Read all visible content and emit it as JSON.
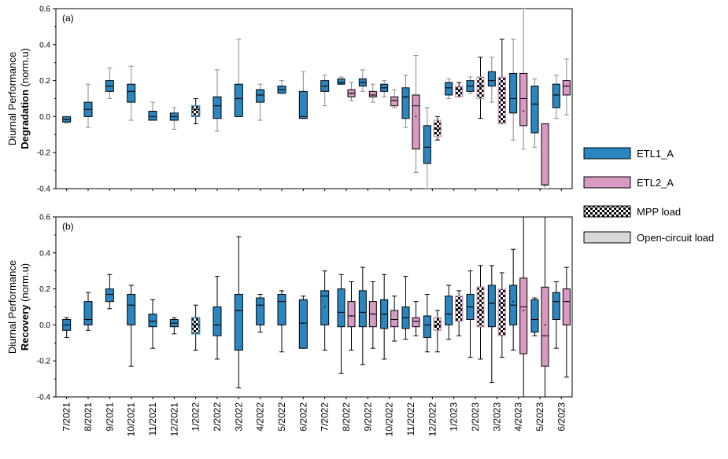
{
  "chart_data": [
    {
      "type": "box",
      "panel_label": "(a)",
      "ylabel_line1": "Diurnal Performance",
      "ylabel_line2_bold": "Degradation",
      "ylabel_line2_rest": " (norm.u)",
      "ylim": [
        -0.4,
        0.6
      ],
      "yticks": [
        "0.6",
        "0.4",
        "0.2",
        "0.0",
        "-0.2",
        "-0.4"
      ],
      "boxes": [
        {
          "cat": "7/2021",
          "series": "ETL1_A",
          "load": "open",
          "q1": -0.03,
          "median": -0.015,
          "q3": 0.0,
          "low": -0.035,
          "high": 0.0,
          "mean": -0.015
        },
        {
          "cat": "8/2021",
          "series": "ETL1_A",
          "load": "open",
          "q1": 0.0,
          "median": 0.04,
          "q3": 0.08,
          "low": -0.06,
          "high": 0.18,
          "mean": 0.04
        },
        {
          "cat": "9/2021",
          "series": "ETL1_A",
          "load": "open",
          "q1": 0.14,
          "median": 0.17,
          "q3": 0.2,
          "low": 0.1,
          "high": 0.27,
          "mean": 0.17
        },
        {
          "cat": "10/2021",
          "series": "ETL1_A",
          "load": "open",
          "q1": 0.08,
          "median": 0.14,
          "q3": 0.18,
          "low": -0.02,
          "high": 0.28,
          "mean": 0.14
        },
        {
          "cat": "11/2021",
          "series": "ETL1_A",
          "load": "open",
          "q1": -0.02,
          "median": 0.0,
          "q3": 0.03,
          "low": -0.02,
          "high": 0.08,
          "mean": 0.0
        },
        {
          "cat": "12/2021",
          "series": "ETL1_A",
          "load": "open",
          "q1": -0.02,
          "median": 0.0,
          "q3": 0.02,
          "low": -0.07,
          "high": 0.05,
          "mean": 0.0
        },
        {
          "cat": "1/2022",
          "series": "ETL1_A",
          "load": "mpp",
          "q1": 0.0,
          "median": 0.04,
          "q3": 0.06,
          "low": -0.04,
          "high": 0.1,
          "mean": 0.04
        },
        {
          "cat": "2/2022",
          "series": "ETL1_A",
          "load": "open",
          "q1": -0.01,
          "median": 0.06,
          "q3": 0.11,
          "low": -0.08,
          "high": 0.26,
          "mean": 0.06
        },
        {
          "cat": "3/2022",
          "series": "ETL1_A",
          "load": "open",
          "q1": 0.0,
          "median": 0.1,
          "q3": 0.18,
          "low": 0.0,
          "high": 0.43,
          "mean": 0.1
        },
        {
          "cat": "4/2022",
          "series": "ETL1_A",
          "load": "open",
          "q1": 0.08,
          "median": 0.12,
          "q3": 0.15,
          "low": -0.02,
          "high": 0.18,
          "mean": 0.12
        },
        {
          "cat": "5/2022",
          "series": "ETL1_A",
          "load": "open",
          "q1": 0.13,
          "median": 0.15,
          "q3": 0.17,
          "low": 0.13,
          "high": 0.2,
          "mean": 0.15
        },
        {
          "cat": "6/2022",
          "series": "ETL1_A",
          "load": "open",
          "q1": -0.01,
          "median": 0.0,
          "q3": 0.14,
          "low": -0.01,
          "high": 0.25,
          "mean": 0.0
        },
        {
          "cat": "7/2022",
          "series": "ETL1_A",
          "load": "open",
          "q1": 0.14,
          "median": 0.17,
          "q3": 0.2,
          "low": 0.06,
          "high": 0.23,
          "mean": 0.17
        },
        {
          "cat": "8/2022",
          "series": "ETL1_A",
          "load": "open",
          "q1": 0.18,
          "median": 0.19,
          "q3": 0.21,
          "low": 0.18,
          "high": 0.22,
          "mean": 0.19
        },
        {
          "cat": "8/2022",
          "series": "ETL2_A",
          "load": "open",
          "q1": 0.11,
          "median": 0.13,
          "q3": 0.15,
          "low": 0.09,
          "high": 0.19,
          "mean": 0.13
        },
        {
          "cat": "9/2022",
          "series": "ETL1_A",
          "load": "open",
          "q1": 0.17,
          "median": 0.19,
          "q3": 0.21,
          "low": 0.14,
          "high": 0.26,
          "mean": 0.19
        },
        {
          "cat": "9/2022",
          "series": "ETL2_A",
          "load": "open",
          "q1": 0.11,
          "median": 0.12,
          "q3": 0.14,
          "low": 0.08,
          "high": 0.18,
          "mean": 0.12
        },
        {
          "cat": "10/2022",
          "series": "ETL1_A",
          "load": "open",
          "q1": 0.14,
          "median": 0.16,
          "q3": 0.18,
          "low": 0.11,
          "high": 0.2,
          "mean": 0.16
        },
        {
          "cat": "10/2022",
          "series": "ETL2_A",
          "load": "open",
          "q1": 0.06,
          "median": 0.09,
          "q3": 0.11,
          "low": 0.05,
          "high": 0.15,
          "mean": 0.09
        },
        {
          "cat": "11/2022",
          "series": "ETL1_A",
          "load": "open",
          "q1": -0.01,
          "median": 0.11,
          "q3": 0.16,
          "low": -0.06,
          "high": 0.23,
          "mean": 0.11
        },
        {
          "cat": "11/2022",
          "series": "ETL2_A",
          "load": "open",
          "q1": -0.18,
          "median": 0.06,
          "q3": 0.12,
          "low": -0.31,
          "high": 0.34,
          "mean": 0.0
        },
        {
          "cat": "12/2022",
          "series": "ETL1_A",
          "load": "open",
          "q1": -0.26,
          "median": -0.17,
          "q3": -0.05,
          "low": -0.4,
          "high": 0.05,
          "mean": -0.17
        },
        {
          "cat": "12/2022",
          "series": "ETL2_A",
          "load": "mpp",
          "q1": -0.11,
          "median": -0.07,
          "q3": -0.02,
          "low": -0.13,
          "high": 0.0,
          "mean": -0.07
        },
        {
          "cat": "1/2023",
          "series": "ETL1_A",
          "load": "open",
          "q1": 0.12,
          "median": 0.16,
          "q3": 0.19,
          "low": 0.1,
          "high": 0.21,
          "mean": 0.16
        },
        {
          "cat": "1/2023",
          "series": "ETL2_A",
          "load": "mpp",
          "q1": 0.11,
          "median": 0.15,
          "q3": 0.17,
          "low": 0.11,
          "high": 0.19,
          "mean": 0.15
        },
        {
          "cat": "2/2023",
          "series": "ETL1_A",
          "load": "open",
          "q1": 0.14,
          "median": 0.17,
          "q3": 0.2,
          "low": 0.13,
          "high": 0.22,
          "mean": 0.17
        },
        {
          "cat": "2/2023",
          "series": "ETL2_A",
          "load": "mpp",
          "q1": 0.1,
          "median": 0.17,
          "q3": 0.22,
          "low": -0.01,
          "high": 0.33,
          "mean": 0.17
        },
        {
          "cat": "3/2023",
          "series": "ETL1_A",
          "load": "open",
          "q1": 0.17,
          "median": 0.2,
          "q3": 0.25,
          "low": 0.08,
          "high": 0.33,
          "mean": 0.2
        },
        {
          "cat": "3/2023",
          "series": "ETL2_A",
          "load": "mpp",
          "q1": -0.04,
          "median": 0.15,
          "q3": 0.22,
          "low": -0.04,
          "high": 0.43,
          "mean": 0.1
        },
        {
          "cat": "4/2023",
          "series": "ETL1_A",
          "load": "open",
          "q1": 0.02,
          "median": 0.1,
          "q3": 0.24,
          "low": -0.13,
          "high": 0.43,
          "mean": 0.1
        },
        {
          "cat": "4/2023",
          "series": "ETL2_A",
          "load": "open",
          "q1": -0.05,
          "median": 0.1,
          "q3": 0.24,
          "low": -0.18,
          "high": 0.6,
          "mean": 0.03
        },
        {
          "cat": "5/2023",
          "series": "ETL1_A",
          "load": "open",
          "q1": -0.09,
          "median": 0.07,
          "q3": 0.17,
          "low": -0.17,
          "high": 0.21,
          "mean": 0.07
        },
        {
          "cat": "5/2023",
          "series": "ETL2_A",
          "load": "open",
          "q1": -0.38,
          "median": -0.38,
          "q3": -0.04,
          "low": -0.4,
          "high": -0.04,
          "mean": -0.38
        },
        {
          "cat": "6/2023",
          "series": "ETL1_A",
          "load": "open",
          "q1": 0.05,
          "median": 0.12,
          "q3": 0.18,
          "low": -0.01,
          "high": 0.23,
          "mean": 0.12
        },
        {
          "cat": "6/2023",
          "series": "ETL2_A",
          "load": "open",
          "q1": 0.12,
          "median": 0.17,
          "q3": 0.2,
          "low": 0.01,
          "high": 0.32,
          "mean": 0.17
        }
      ]
    },
    {
      "type": "box",
      "panel_label": "(b)",
      "ylabel_line1": "Diurnal Performance",
      "ylabel_line2_bold": "Recovery",
      "ylabel_line2_rest": " (norm.u)",
      "ylim": [
        -0.4,
        0.6
      ],
      "yticks": [
        "0.6",
        "0.4",
        "0.2",
        "0.0",
        "-0.2",
        "-0.4"
      ],
      "boxes": [
        {
          "cat": "7/2021",
          "series": "ETL1_A",
          "load": "open",
          "q1": -0.03,
          "median": 0.0,
          "q3": 0.03,
          "low": -0.07,
          "high": 0.04,
          "mean": 0.0
        },
        {
          "cat": "8/2021",
          "series": "ETL1_A",
          "load": "open",
          "q1": 0.0,
          "median": 0.03,
          "q3": 0.13,
          "low": -0.03,
          "high": 0.18,
          "mean": 0.03
        },
        {
          "cat": "9/2021",
          "series": "ETL1_A",
          "load": "open",
          "q1": 0.13,
          "median": 0.17,
          "q3": 0.2,
          "low": 0.09,
          "high": 0.28,
          "mean": 0.17
        },
        {
          "cat": "10/2021",
          "series": "ETL1_A",
          "load": "open",
          "q1": 0.0,
          "median": 0.11,
          "q3": 0.17,
          "low": -0.23,
          "high": 0.22,
          "mean": 0.11
        },
        {
          "cat": "11/2021",
          "series": "ETL1_A",
          "load": "open",
          "q1": -0.01,
          "median": 0.02,
          "q3": 0.06,
          "low": -0.13,
          "high": 0.14,
          "mean": 0.02
        },
        {
          "cat": "12/2021",
          "series": "ETL1_A",
          "load": "open",
          "q1": -0.01,
          "median": 0.01,
          "q3": 0.03,
          "low": -0.05,
          "high": 0.04,
          "mean": 0.01
        },
        {
          "cat": "1/2022",
          "series": "ETL1_A",
          "load": "mpp",
          "q1": -0.05,
          "median": 0.0,
          "q3": 0.04,
          "low": -0.14,
          "high": 0.11,
          "mean": 0.0
        },
        {
          "cat": "2/2022",
          "series": "ETL1_A",
          "load": "open",
          "q1": -0.06,
          "median": 0.0,
          "q3": 0.1,
          "low": -0.19,
          "high": 0.27,
          "mean": 0.0
        },
        {
          "cat": "3/2022",
          "series": "ETL1_A",
          "load": "open",
          "q1": -0.14,
          "median": 0.08,
          "q3": 0.17,
          "low": -0.35,
          "high": 0.49,
          "mean": 0.08
        },
        {
          "cat": "4/2022",
          "series": "ETL1_A",
          "load": "open",
          "q1": 0.0,
          "median": 0.11,
          "q3": 0.15,
          "low": -0.04,
          "high": 0.17,
          "mean": 0.11
        },
        {
          "cat": "5/2022",
          "series": "ETL1_A",
          "load": "open",
          "q1": 0.0,
          "median": 0.13,
          "q3": 0.17,
          "low": -0.15,
          "high": 0.19,
          "mean": 0.13
        },
        {
          "cat": "6/2022",
          "series": "ETL1_A",
          "load": "open",
          "q1": -0.13,
          "median": 0.01,
          "q3": 0.14,
          "low": -0.13,
          "high": 0.16,
          "mean": 0.01
        },
        {
          "cat": "7/2022",
          "series": "ETL1_A",
          "load": "open",
          "q1": 0.0,
          "median": 0.16,
          "q3": 0.19,
          "low": -0.14,
          "high": 0.3,
          "mean": 0.1
        },
        {
          "cat": "8/2022",
          "series": "ETL1_A",
          "load": "open",
          "q1": -0.01,
          "median": 0.07,
          "q3": 0.2,
          "low": -0.27,
          "high": 0.28,
          "mean": 0.07
        },
        {
          "cat": "8/2022",
          "series": "ETL2_A",
          "load": "open",
          "q1": -0.01,
          "median": 0.05,
          "q3": 0.13,
          "low": -0.14,
          "high": 0.24,
          "mean": 0.05
        },
        {
          "cat": "9/2022",
          "series": "ETL1_A",
          "load": "open",
          "q1": -0.01,
          "median": 0.07,
          "q3": 0.19,
          "low": -0.22,
          "high": 0.32,
          "mean": 0.07
        },
        {
          "cat": "9/2022",
          "series": "ETL2_A",
          "load": "open",
          "q1": -0.01,
          "median": 0.06,
          "q3": 0.13,
          "low": -0.13,
          "high": 0.24,
          "mean": 0.06
        },
        {
          "cat": "10/2022",
          "series": "ETL1_A",
          "load": "open",
          "q1": -0.02,
          "median": 0.06,
          "q3": 0.14,
          "low": -0.19,
          "high": 0.28,
          "mean": 0.06
        },
        {
          "cat": "10/2022",
          "series": "ETL2_A",
          "load": "open",
          "q1": -0.01,
          "median": 0.03,
          "q3": 0.08,
          "low": -0.09,
          "high": 0.16,
          "mean": 0.03
        },
        {
          "cat": "11/2022",
          "series": "ETL1_A",
          "load": "open",
          "q1": -0.02,
          "median": 0.04,
          "q3": 0.1,
          "low": -0.08,
          "high": 0.27,
          "mean": 0.04
        },
        {
          "cat": "11/2022",
          "series": "ETL2_A",
          "load": "open",
          "q1": -0.01,
          "median": 0.02,
          "q3": 0.04,
          "low": -0.06,
          "high": 0.13,
          "mean": 0.02
        },
        {
          "cat": "12/2022",
          "series": "ETL1_A",
          "load": "open",
          "q1": -0.07,
          "median": 0.0,
          "q3": 0.05,
          "low": -0.15,
          "high": 0.17,
          "mean": 0.0
        },
        {
          "cat": "12/2022",
          "series": "ETL2_A",
          "load": "mpp",
          "q1": -0.03,
          "median": 0.0,
          "q3": 0.04,
          "low": -0.15,
          "high": 0.08,
          "mean": 0.0
        },
        {
          "cat": "1/2023",
          "series": "ETL1_A",
          "load": "open",
          "q1": 0.0,
          "median": 0.06,
          "q3": 0.16,
          "low": -0.08,
          "high": 0.22,
          "mean": 0.06
        },
        {
          "cat": "1/2023",
          "series": "ETL2_A",
          "load": "mpp",
          "q1": 0.02,
          "median": 0.09,
          "q3": 0.16,
          "low": -0.06,
          "high": 0.19,
          "mean": 0.09
        },
        {
          "cat": "2/2023",
          "series": "ETL1_A",
          "load": "open",
          "q1": 0.03,
          "median": 0.1,
          "q3": 0.17,
          "low": -0.18,
          "high": 0.3,
          "mean": 0.1
        },
        {
          "cat": "2/2023",
          "series": "ETL2_A",
          "load": "mpp",
          "q1": -0.01,
          "median": 0.08,
          "q3": 0.21,
          "low": -0.19,
          "high": 0.33,
          "mean": 0.08
        },
        {
          "cat": "3/2023",
          "series": "ETL1_A",
          "load": "open",
          "q1": -0.01,
          "median": 0.12,
          "q3": 0.22,
          "low": -0.32,
          "high": 0.33,
          "mean": 0.12
        },
        {
          "cat": "3/2023",
          "series": "ETL2_A",
          "load": "mpp",
          "q1": -0.06,
          "median": 0.12,
          "q3": 0.2,
          "low": -0.18,
          "high": 0.29,
          "mean": 0.1
        },
        {
          "cat": "4/2023",
          "series": "ETL1_A",
          "load": "open",
          "q1": 0.0,
          "median": 0.11,
          "q3": 0.22,
          "low": -0.14,
          "high": 0.42,
          "mean": 0.13
        },
        {
          "cat": "4/2023",
          "series": "ETL2_A",
          "load": "open",
          "q1": -0.16,
          "median": 0.1,
          "q3": 0.26,
          "low": -0.4,
          "high": 0.6,
          "mean": 0.08
        },
        {
          "cat": "5/2023",
          "series": "ETL1_A",
          "load": "open",
          "q1": -0.04,
          "median": 0.03,
          "q3": 0.14,
          "low": -0.06,
          "high": 0.15,
          "mean": 0.03
        },
        {
          "cat": "5/2023",
          "series": "ETL2_A",
          "load": "open",
          "q1": -0.23,
          "median": -0.06,
          "q3": 0.21,
          "low": -0.4,
          "high": 0.6,
          "mean": 0.0
        },
        {
          "cat": "6/2023",
          "series": "ETL1_A",
          "load": "open",
          "q1": 0.03,
          "median": 0.13,
          "q3": 0.18,
          "low": -0.13,
          "high": 0.24,
          "mean": 0.13
        },
        {
          "cat": "6/2023",
          "series": "ETL2_A",
          "load": "open",
          "q1": 0.0,
          "median": 0.13,
          "q3": 0.2,
          "low": -0.29,
          "high": 0.32,
          "mean": 0.13
        }
      ]
    }
  ],
  "categories": [
    "7/2021",
    "8/2021",
    "9/2021",
    "10/2021",
    "11/2021",
    "12/2021",
    "1/2022",
    "2/2022",
    "3/2022",
    "4/2022",
    "5/2022",
    "6/2022",
    "7/2022",
    "8/2022",
    "9/2022",
    "10/2022",
    "11/2022",
    "12/2022",
    "1/2023",
    "2/2023",
    "3/2023",
    "4/2023",
    "5/2023",
    "6/2023"
  ],
  "legend": [
    {
      "label": "ETL1_A",
      "kind": "ETL1_A"
    },
    {
      "label": "ETL2_A",
      "kind": "ETL2_A"
    },
    {
      "label": "MPP load",
      "kind": "mpp"
    },
    {
      "label": "Open-circuit load",
      "kind": "open"
    }
  ],
  "colors": {
    "ETL1_A": "#2a86c0",
    "ETL2_A": "#d89ac3",
    "open": "#d8d8d8",
    "whisker": "#000000"
  }
}
